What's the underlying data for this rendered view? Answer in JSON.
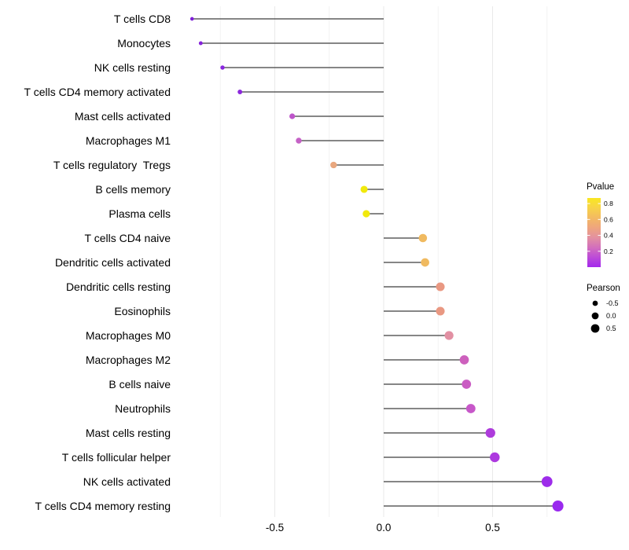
{
  "chart_data": {
    "type": "scatter",
    "variant": "lollipop",
    "title": "",
    "xlabel": "",
    "ylabel": "",
    "categories": [
      "T cells CD8",
      "Monocytes",
      "NK cells resting",
      "T cells CD4 memory activated",
      "Mast cells activated",
      "Macrophages M1",
      "T cells regulatory  Tregs",
      "B cells memory",
      "Plasma cells",
      "T cells CD4 naive",
      "Dendritic cells activated",
      "Dendritic cells resting",
      "Eosinophils",
      "Macrophages M0",
      "Macrophages M2",
      "B cells naive",
      "Neutrophils",
      "Mast cells resting",
      "T cells follicular helper",
      "NK cells activated",
      "T cells CD4 memory resting"
    ],
    "series": [
      {
        "name": "Pearson",
        "values": [
          -0.88,
          -0.84,
          -0.74,
          -0.66,
          -0.42,
          -0.39,
          -0.23,
          -0.09,
          -0.08,
          0.18,
          0.19,
          0.26,
          0.26,
          0.3,
          0.37,
          0.38,
          0.4,
          0.49,
          0.51,
          0.75,
          0.8
        ]
      }
    ],
    "point_colors": [
      "#7F20D8",
      "#8522DA",
      "#8926DE",
      "#8C29DC",
      "#BE55CA",
      "#C561C6",
      "#E9A77E",
      "#F1E90C",
      "#F1E90C",
      "#F0BA60",
      "#F0BA60",
      "#E99882",
      "#E99882",
      "#E290A3",
      "#CD60BD",
      "#CA5CC3",
      "#C757C9",
      "#AE3CDC",
      "#AD39DF",
      "#9D2CEA",
      "#9929EE"
    ],
    "xlim": [
      -0.96,
      0.88
    ],
    "x_major_ticks": [
      -0.5,
      0,
      0.5
    ],
    "x_tick_labels": [
      "-0.5",
      "0.0",
      "0.5"
    ],
    "x_minor_ticks": [
      -0.75,
      -0.25,
      0.25,
      0.75
    ],
    "grid": "vertical-only",
    "legend_position": "right",
    "legends": {
      "pvalue_colorbar": {
        "title": "Pvalue",
        "tick_labels": [
          "0.8",
          "0.6",
          "0.4",
          "0.2"
        ],
        "tick_values": [
          0.8,
          0.6,
          0.4,
          0.2
        ],
        "range": [
          0,
          0.87
        ],
        "gradient_bottom_to_top": [
          "#A428EC",
          "#BC4BD8",
          "#D36FBC",
          "#E391A0",
          "#EFA57E",
          "#F3BA62",
          "#F7D348",
          "#F9E721"
        ]
      },
      "pearson_size": {
        "title": "Pearson",
        "labels": [
          "-0.5",
          "0.0",
          "0.5"
        ],
        "values": [
          -0.5,
          0.0,
          0.5
        ]
      }
    },
    "colors": {
      "stem": "#3F3F3F",
      "axis_text": "#000000",
      "grid_major": "#E9E9E9",
      "grid_minor": "#F2F2F2",
      "legend_dot": "#000000",
      "background": "#FFFFFF"
    }
  }
}
